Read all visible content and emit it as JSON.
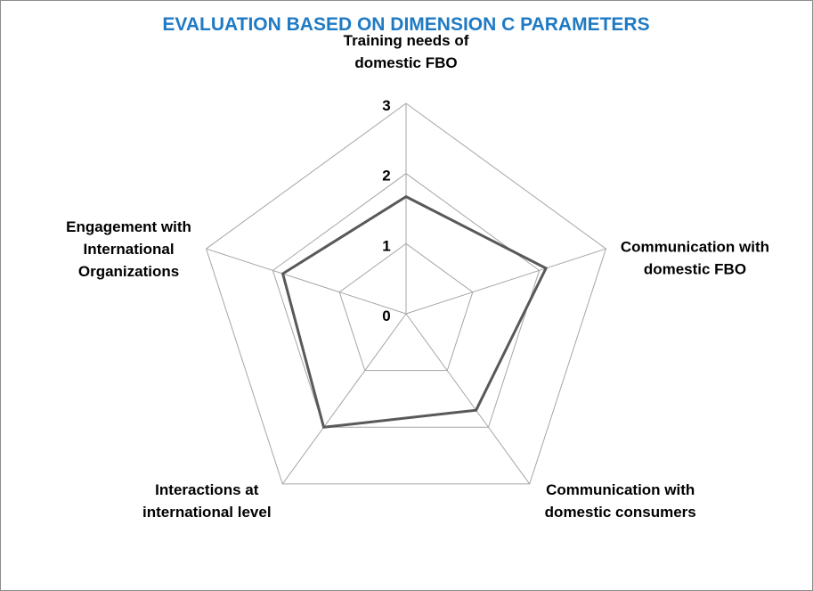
{
  "chart_data": {
    "type": "radar",
    "title": "EVALUATION BASED ON DIMENSION C PARAMETERS",
    "axes": [
      {
        "label_lines": [
          "Training needs of",
          "domestic FBO"
        ]
      },
      {
        "label_lines": [
          "Communication with",
          "domestic FBO"
        ]
      },
      {
        "label_lines": [
          "Communication with",
          "domestic consumers"
        ]
      },
      {
        "label_lines": [
          "Interactions at",
          "international level"
        ]
      },
      {
        "label_lines": [
          "Engagement with",
          "International",
          "Organizations"
        ]
      }
    ],
    "rlim": [
      0,
      3
    ],
    "ticks": [
      "0",
      "1",
      "2",
      "3"
    ],
    "series": [
      {
        "values": [
          1.67,
          2.1,
          1.7,
          2.0,
          1.85
        ],
        "color": "#595959"
      }
    ],
    "grid": true,
    "legend": "none"
  }
}
